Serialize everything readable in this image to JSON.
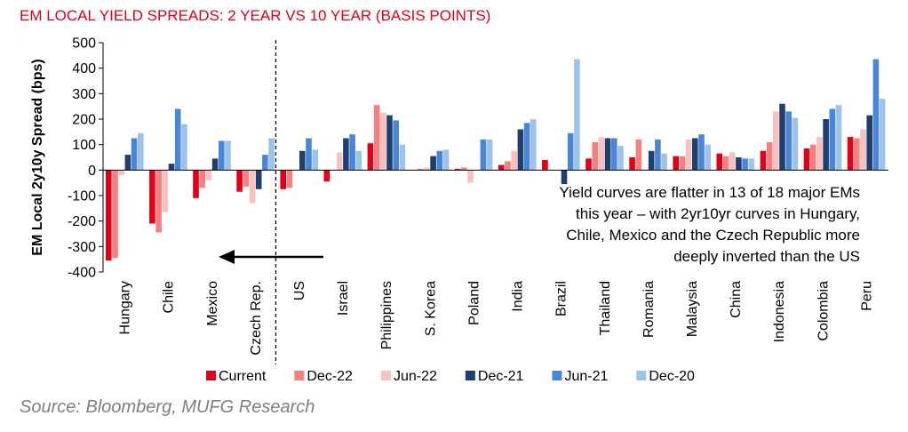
{
  "title": "EM LOCAL YIELD SPREADS: 2 YEAR VS 10 YEAR (BASIS POINTS)",
  "source": "Source: Bloomberg, MUFG Research",
  "chart_data": {
    "type": "bar",
    "ylabel": "EM Local 2y10y Spread (bps)",
    "xlabel": "",
    "ylim": [
      -400,
      500
    ],
    "yticks": [
      500,
      400,
      300,
      200,
      100,
      0,
      -100,
      -200,
      -300,
      -400
    ],
    "categories": [
      "Hungary",
      "Chile",
      "Mexico",
      "Czech Rep.",
      "US",
      "Israel",
      "Philippines",
      "S. Korea",
      "Poland",
      "India",
      "Brazil",
      "Thailand",
      "Romania",
      "Malaysia",
      "China",
      "Indonesia",
      "Colombia",
      "Peru"
    ],
    "series": [
      {
        "name": "Current",
        "color": "#e0001b",
        "values": [
          -355,
          -210,
          -110,
          -85,
          -75,
          -45,
          105,
          0,
          5,
          20,
          40,
          45,
          50,
          55,
          65,
          75,
          85,
          130
        ]
      },
      {
        "name": "Dec-22",
        "color": "#f48080",
        "values": [
          -345,
          -245,
          -70,
          -65,
          -70,
          0,
          255,
          5,
          10,
          35,
          0,
          110,
          120,
          55,
          55,
          110,
          100,
          125
        ]
      },
      {
        "name": "Jun-22",
        "color": "#f9c0c0",
        "values": [
          -20,
          -165,
          -40,
          -130,
          0,
          70,
          225,
          10,
          -50,
          75,
          0,
          130,
          0,
          120,
          70,
          230,
          130,
          160
        ]
      },
      {
        "name": "Dec-21",
        "color": "#1f3f6f",
        "values": [
          60,
          25,
          45,
          -75,
          75,
          125,
          215,
          55,
          0,
          160,
          -55,
          125,
          75,
          125,
          50,
          260,
          200,
          215
        ]
      },
      {
        "name": "Jun-21",
        "color": "#4a86d8",
        "values": [
          125,
          240,
          115,
          60,
          125,
          140,
          195,
          75,
          120,
          185,
          145,
          125,
          120,
          140,
          45,
          230,
          240,
          435
        ]
      },
      {
        "name": "Dec-20",
        "color": "#9dc3ea",
        "values": [
          145,
          180,
          115,
          125,
          80,
          75,
          100,
          80,
          120,
          200,
          435,
          95,
          65,
          100,
          45,
          205,
          255,
          280
        ]
      }
    ],
    "annotation": [
      "Yield curves are flatter in 13 of 18 major EMs",
      "this year – with 2yr10yr curves in Hungary,",
      "Chile, Mexico and the Czech Republic more",
      "deeply inverted than the US"
    ],
    "legend_position": "bottom",
    "grid": false
  }
}
